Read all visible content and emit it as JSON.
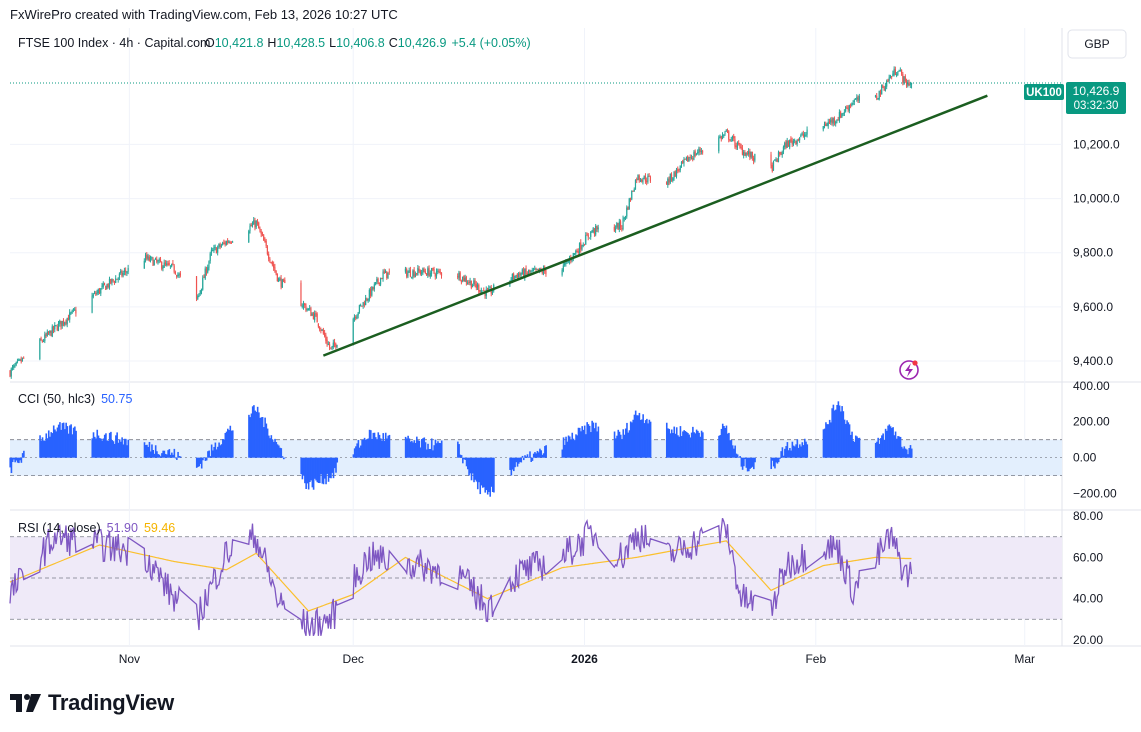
{
  "header": {
    "credit": "FxWirePro created with TradingView.com, Feb 13, 2026 10:27 UTC"
  },
  "main_pane": {
    "symbol": "FTSE 100 Index · 4h · Capital.com",
    "ohlc": {
      "o_label": "O",
      "o": "10,421.8",
      "h_label": "H",
      "h": "10,428.5",
      "l_label": "L",
      "l": "10,406.8",
      "c_label": "C",
      "c": "10,426.9",
      "change": "+5.4 (+0.05%)"
    },
    "currency_button": "GBP",
    "price_axis_ticks": [
      "10,200.0",
      "10,000.0",
      "9,800.0",
      "9,600.0",
      "9,400.0"
    ],
    "symbol_tag": "UK100",
    "last_price": "10,426.9",
    "countdown": "03:32:30"
  },
  "cci_pane": {
    "label": "CCI (50, hlc3)",
    "value": "50.75",
    "axis_ticks": [
      "400.00",
      "200.00",
      "0.00",
      "−200.00"
    ]
  },
  "rsi_pane": {
    "label": "RSI (14, close)",
    "value": "51.90",
    "ma_value": "59.46",
    "axis_ticks": [
      "80.00",
      "60.00",
      "40.00",
      "20.00"
    ]
  },
  "time_axis": {
    "labels": [
      "Nov",
      "Dec",
      "2026",
      "Feb",
      "Mar"
    ]
  },
  "footer": {
    "brand": "TradingView"
  },
  "colors": {
    "up": "#26a69a",
    "down": "#ef5350",
    "trendline": "#1b5e20",
    "cci": "#2962ff",
    "cci_band": "#e3effd",
    "rsi": "#7e57c2",
    "rsi_ma": "#fbc02d",
    "rsi_band": "#efeaf8",
    "price_tag": "#089981"
  },
  "chart_data": [
    {
      "type": "candlestick",
      "title": "FTSE 100 Index · 4h · Capital.com",
      "y_unit": "GBP",
      "ylim": [
        9330,
        10630
      ],
      "x_range": [
        "2025-10-16",
        "2026-03-06"
      ],
      "anchor_closes": [
        {
          "date": "2025-10-16",
          "close": 9360
        },
        {
          "date": "2025-10-22",
          "close": 9520
        },
        {
          "date": "2025-10-28",
          "close": 9660
        },
        {
          "date": "2025-11-03",
          "close": 9780
        },
        {
          "date": "2025-11-07",
          "close": 9740
        },
        {
          "date": "2025-11-10",
          "close": 9620
        },
        {
          "date": "2025-11-12",
          "close": 9800
        },
        {
          "date": "2025-11-14",
          "close": 9840
        },
        {
          "date": "2025-11-18",
          "close": 9910
        },
        {
          "date": "2025-11-21",
          "close": 9700
        },
        {
          "date": "2025-11-26",
          "close": 9560
        },
        {
          "date": "2025-11-28",
          "close": 9440
        },
        {
          "date": "2025-12-02",
          "close": 9600
        },
        {
          "date": "2025-12-05",
          "close": 9720
        },
        {
          "date": "2025-12-10",
          "close": 9730
        },
        {
          "date": "2025-12-15",
          "close": 9720
        },
        {
          "date": "2025-12-19",
          "close": 9650
        },
        {
          "date": "2025-12-23",
          "close": 9720
        },
        {
          "date": "2025-12-29",
          "close": 9740
        },
        {
          "date": "2026-01-02",
          "close": 9880
        },
        {
          "date": "2026-01-06",
          "close": 9900
        },
        {
          "date": "2026-01-08",
          "close": 10080
        },
        {
          "date": "2026-01-12",
          "close": 10060
        },
        {
          "date": "2026-01-15",
          "close": 10150
        },
        {
          "date": "2026-01-20",
          "close": 10240
        },
        {
          "date": "2026-01-22",
          "close": 10180
        },
        {
          "date": "2026-01-26",
          "close": 10110
        },
        {
          "date": "2026-01-28",
          "close": 10200
        },
        {
          "date": "2026-02-02",
          "close": 10270
        },
        {
          "date": "2026-02-04",
          "close": 10300
        },
        {
          "date": "2026-02-06",
          "close": 10360
        },
        {
          "date": "2026-02-09",
          "close": 10370
        },
        {
          "date": "2026-02-11",
          "close": 10450
        },
        {
          "date": "2026-02-12",
          "close": 10480
        },
        {
          "date": "2026-02-13",
          "close": 10426.9
        }
      ],
      "trendline": {
        "from": {
          "date": "2025-11-27",
          "price": 9420
        },
        "to": {
          "date": "2026-02-24",
          "price": 10380
        }
      }
    },
    {
      "type": "histogram",
      "title": "CCI (50, hlc3)",
      "ylim": [
        -280,
        410
      ],
      "bands": [
        -100,
        100
      ],
      "anchors": [
        {
          "date": "2025-10-16",
          "value": -60
        },
        {
          "date": "2025-10-22",
          "value": 170
        },
        {
          "date": "2025-10-28",
          "value": 130
        },
        {
          "date": "2025-11-03",
          "value": 70
        },
        {
          "date": "2025-11-07",
          "value": 20
        },
        {
          "date": "2025-11-10",
          "value": -60
        },
        {
          "date": "2025-11-14",
          "value": 140
        },
        {
          "date": "2025-11-18",
          "value": 270
        },
        {
          "date": "2025-11-21",
          "value": 60
        },
        {
          "date": "2025-11-25",
          "value": -160
        },
        {
          "date": "2025-11-28",
          "value": -100
        },
        {
          "date": "2025-12-03",
          "value": 130
        },
        {
          "date": "2025-12-10",
          "value": 80
        },
        {
          "date": "2025-12-15",
          "value": 60
        },
        {
          "date": "2025-12-17",
          "value": -120
        },
        {
          "date": "2025-12-19",
          "value": -220
        },
        {
          "date": "2025-12-23",
          "value": -30
        },
        {
          "date": "2025-12-29",
          "value": 80
        },
        {
          "date": "2026-01-02",
          "value": 180
        },
        {
          "date": "2026-01-06",
          "value": 120
        },
        {
          "date": "2026-01-08",
          "value": 250
        },
        {
          "date": "2026-01-12",
          "value": 160
        },
        {
          "date": "2026-01-15",
          "value": 140
        },
        {
          "date": "2026-01-20",
          "value": 160
        },
        {
          "date": "2026-01-22",
          "value": -40
        },
        {
          "date": "2026-01-26",
          "value": -60
        },
        {
          "date": "2026-01-28",
          "value": 60
        },
        {
          "date": "2026-02-02",
          "value": 140
        },
        {
          "date": "2026-02-04",
          "value": 320
        },
        {
          "date": "2026-02-06",
          "value": 120
        },
        {
          "date": "2026-02-09",
          "value": 60
        },
        {
          "date": "2026-02-11",
          "value": 180
        },
        {
          "date": "2026-02-13",
          "value": 50.75
        }
      ]
    },
    {
      "type": "line",
      "title": "RSI (14, close)",
      "ylim": [
        18,
        82
      ],
      "bands": [
        30,
        50,
        70
      ],
      "series": [
        {
          "name": "RSI",
          "anchors": [
            {
              "date": "2025-10-16",
              "value": 42
            },
            {
              "date": "2025-10-22",
              "value": 70
            },
            {
              "date": "2025-10-28",
              "value": 66
            },
            {
              "date": "2025-11-03",
              "value": 62
            },
            {
              "date": "2025-11-07",
              "value": 40
            },
            {
              "date": "2025-11-10",
              "value": 30
            },
            {
              "date": "2025-11-14",
              "value": 62
            },
            {
              "date": "2025-11-18",
              "value": 70
            },
            {
              "date": "2025-11-21",
              "value": 38
            },
            {
              "date": "2025-11-25",
              "value": 26
            },
            {
              "date": "2025-11-28",
              "value": 30
            },
            {
              "date": "2025-12-03",
              "value": 60
            },
            {
              "date": "2025-12-10",
              "value": 56
            },
            {
              "date": "2025-12-15",
              "value": 52
            },
            {
              "date": "2025-12-19",
              "value": 36
            },
            {
              "date": "2025-12-23",
              "value": 52
            },
            {
              "date": "2025-12-29",
              "value": 60
            },
            {
              "date": "2026-01-02",
              "value": 72
            },
            {
              "date": "2026-01-06",
              "value": 60
            },
            {
              "date": "2026-01-08",
              "value": 72
            },
            {
              "date": "2026-01-12",
              "value": 60
            },
            {
              "date": "2026-01-15",
              "value": 66
            },
            {
              "date": "2026-01-20",
              "value": 74
            },
            {
              "date": "2026-01-22",
              "value": 40
            },
            {
              "date": "2026-01-26",
              "value": 34
            },
            {
              "date": "2026-01-28",
              "value": 56
            },
            {
              "date": "2026-02-02",
              "value": 66
            },
            {
              "date": "2026-02-04",
              "value": 64
            },
            {
              "date": "2026-02-06",
              "value": 44
            },
            {
              "date": "2026-02-09",
              "value": 58
            },
            {
              "date": "2026-02-11",
              "value": 70
            },
            {
              "date": "2026-02-13",
              "value": 51.9
            }
          ]
        },
        {
          "name": "RSI-based MA",
          "anchors": [
            {
              "date": "2025-10-16",
              "value": 48
            },
            {
              "date": "2025-10-28",
              "value": 66
            },
            {
              "date": "2025-11-07",
              "value": 58
            },
            {
              "date": "2025-11-14",
              "value": 54
            },
            {
              "date": "2025-11-18",
              "value": 62
            },
            {
              "date": "2025-11-25",
              "value": 34
            },
            {
              "date": "2025-12-01",
              "value": 42
            },
            {
              "date": "2025-12-08",
              "value": 60
            },
            {
              "date": "2025-12-19",
              "value": 40
            },
            {
              "date": "2025-12-29",
              "value": 55
            },
            {
              "date": "2026-01-08",
              "value": 60
            },
            {
              "date": "2026-01-20",
              "value": 68
            },
            {
              "date": "2026-01-26",
              "value": 44
            },
            {
              "date": "2026-02-02",
              "value": 56
            },
            {
              "date": "2026-02-09",
              "value": 60
            },
            {
              "date": "2026-02-13",
              "value": 59.46
            }
          ]
        }
      ]
    }
  ]
}
